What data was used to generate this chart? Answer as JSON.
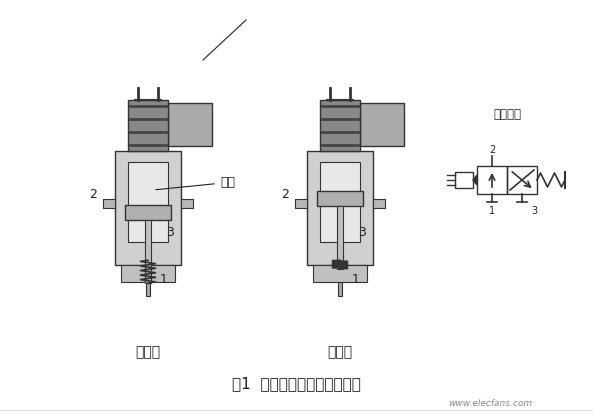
{
  "title": "图1  先导式电磁阀结构示意图",
  "label_left": "换向前",
  "label_right": "换向后",
  "label_symbol": "图形符号",
  "num1": "1",
  "num2": "2",
  "num3_left": "3",
  "num3_right": "3",
  "num1_right": "1",
  "num2_right": "2",
  "label_main": "主阀",
  "sym_num1": "1",
  "sym_num2": "2",
  "sym_num3": "3",
  "bg_color": "#ffffff",
  "valve_body_color": "#c8c8c8",
  "valve_dark": "#888888",
  "valve_light": "#e8e8e8",
  "line_color": "#333333",
  "text_color": "#222222",
  "footer_text": "www.elecfans.com",
  "solenoid_color": "#555555",
  "spring_color": "#444444"
}
